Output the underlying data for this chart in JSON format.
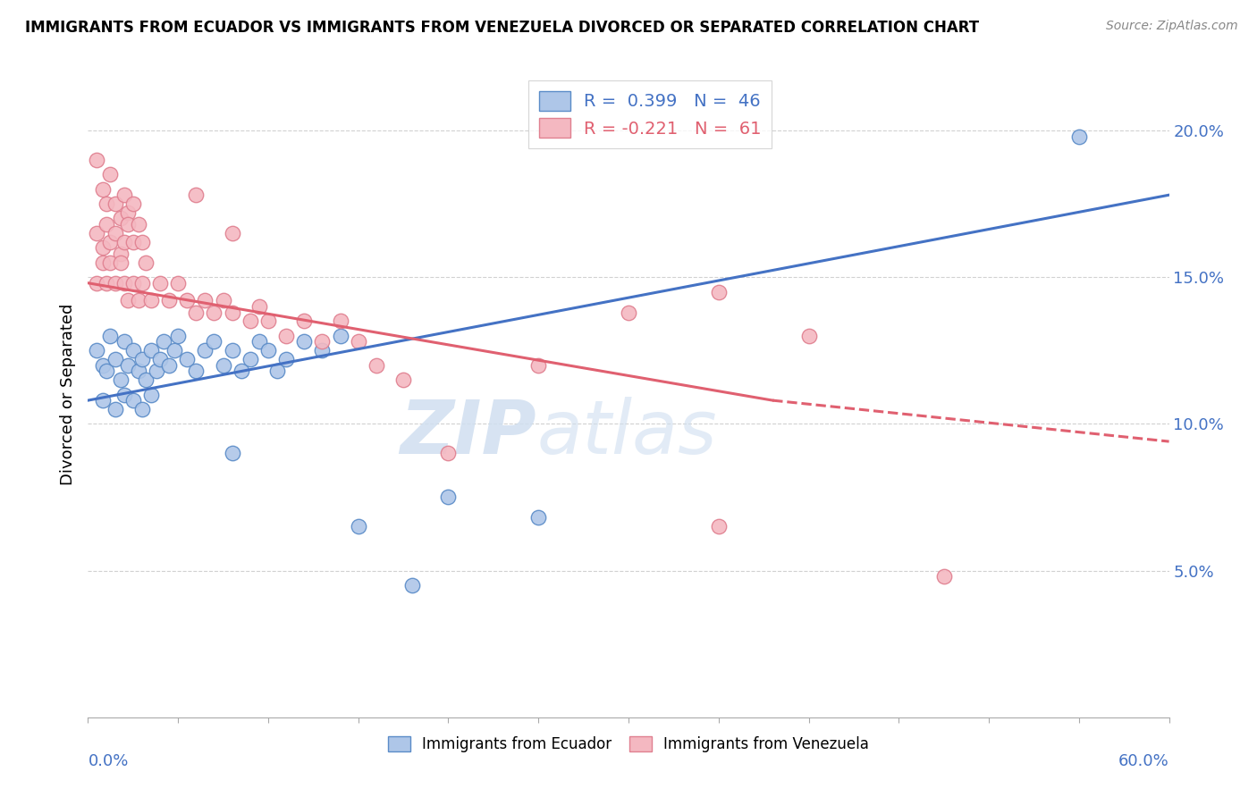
{
  "title": "IMMIGRANTS FROM ECUADOR VS IMMIGRANTS FROM VENEZUELA DIVORCED OR SEPARATED CORRELATION CHART",
  "source": "Source: ZipAtlas.com",
  "ylabel": "Divorced or Separated",
  "xlim": [
    0.0,
    0.6
  ],
  "ylim": [
    0.0,
    0.22
  ],
  "yticks": [
    0.05,
    0.1,
    0.15,
    0.2
  ],
  "ytick_labels": [
    "5.0%",
    "10.0%",
    "15.0%",
    "20.0%"
  ],
  "xtick_labels": [
    "0.0%",
    "",
    "",
    "",
    "",
    "",
    "60.0%"
  ],
  "legend_ecuador": "R =  0.399   N =  46",
  "legend_venezuela": "R = -0.221   N =  61",
  "ecuador_color": "#aec6e8",
  "venezuela_color": "#f4b8c1",
  "ecuador_edge_color": "#5b8cc8",
  "venezuela_edge_color": "#e08090",
  "ecuador_line_color": "#4472c4",
  "venezuela_line_color": "#e06070",
  "ecuador_regression": [
    0.0,
    0.6,
    0.108,
    0.178
  ],
  "venezuela_regression_solid": [
    0.0,
    0.38,
    0.148,
    0.108
  ],
  "venezuela_regression_dashed": [
    0.38,
    0.6,
    0.108,
    0.094
  ],
  "ecuador_points": [
    [
      0.005,
      0.125
    ],
    [
      0.008,
      0.12
    ],
    [
      0.01,
      0.118
    ],
    [
      0.012,
      0.13
    ],
    [
      0.015,
      0.122
    ],
    [
      0.018,
      0.115
    ],
    [
      0.02,
      0.128
    ],
    [
      0.022,
      0.12
    ],
    [
      0.025,
      0.125
    ],
    [
      0.028,
      0.118
    ],
    [
      0.03,
      0.122
    ],
    [
      0.032,
      0.115
    ],
    [
      0.035,
      0.125
    ],
    [
      0.038,
      0.118
    ],
    [
      0.04,
      0.122
    ],
    [
      0.042,
      0.128
    ],
    [
      0.045,
      0.12
    ],
    [
      0.048,
      0.125
    ],
    [
      0.05,
      0.13
    ],
    [
      0.055,
      0.122
    ],
    [
      0.06,
      0.118
    ],
    [
      0.065,
      0.125
    ],
    [
      0.07,
      0.128
    ],
    [
      0.075,
      0.12
    ],
    [
      0.08,
      0.125
    ],
    [
      0.085,
      0.118
    ],
    [
      0.09,
      0.122
    ],
    [
      0.095,
      0.128
    ],
    [
      0.1,
      0.125
    ],
    [
      0.105,
      0.118
    ],
    [
      0.11,
      0.122
    ],
    [
      0.12,
      0.128
    ],
    [
      0.13,
      0.125
    ],
    [
      0.14,
      0.13
    ],
    [
      0.008,
      0.108
    ],
    [
      0.015,
      0.105
    ],
    [
      0.02,
      0.11
    ],
    [
      0.025,
      0.108
    ],
    [
      0.03,
      0.105
    ],
    [
      0.035,
      0.11
    ],
    [
      0.08,
      0.09
    ],
    [
      0.15,
      0.065
    ],
    [
      0.18,
      0.045
    ],
    [
      0.55,
      0.198
    ],
    [
      0.2,
      0.075
    ],
    [
      0.25,
      0.068
    ]
  ],
  "venezuela_points": [
    [
      0.005,
      0.19
    ],
    [
      0.008,
      0.18
    ],
    [
      0.01,
      0.175
    ],
    [
      0.012,
      0.185
    ],
    [
      0.015,
      0.175
    ],
    [
      0.018,
      0.17
    ],
    [
      0.02,
      0.178
    ],
    [
      0.022,
      0.172
    ],
    [
      0.005,
      0.165
    ],
    [
      0.008,
      0.16
    ],
    [
      0.01,
      0.168
    ],
    [
      0.012,
      0.162
    ],
    [
      0.015,
      0.165
    ],
    [
      0.018,
      0.158
    ],
    [
      0.02,
      0.162
    ],
    [
      0.022,
      0.168
    ],
    [
      0.025,
      0.162
    ],
    [
      0.028,
      0.168
    ],
    [
      0.03,
      0.162
    ],
    [
      0.032,
      0.155
    ],
    [
      0.005,
      0.148
    ],
    [
      0.008,
      0.155
    ],
    [
      0.01,
      0.148
    ],
    [
      0.012,
      0.155
    ],
    [
      0.015,
      0.148
    ],
    [
      0.018,
      0.155
    ],
    [
      0.02,
      0.148
    ],
    [
      0.022,
      0.142
    ],
    [
      0.025,
      0.148
    ],
    [
      0.028,
      0.142
    ],
    [
      0.03,
      0.148
    ],
    [
      0.035,
      0.142
    ],
    [
      0.04,
      0.148
    ],
    [
      0.045,
      0.142
    ],
    [
      0.05,
      0.148
    ],
    [
      0.055,
      0.142
    ],
    [
      0.06,
      0.138
    ],
    [
      0.065,
      0.142
    ],
    [
      0.07,
      0.138
    ],
    [
      0.075,
      0.142
    ],
    [
      0.08,
      0.138
    ],
    [
      0.09,
      0.135
    ],
    [
      0.095,
      0.14
    ],
    [
      0.1,
      0.135
    ],
    [
      0.11,
      0.13
    ],
    [
      0.12,
      0.135
    ],
    [
      0.13,
      0.128
    ],
    [
      0.14,
      0.135
    ],
    [
      0.15,
      0.128
    ],
    [
      0.16,
      0.12
    ],
    [
      0.175,
      0.115
    ],
    [
      0.2,
      0.09
    ],
    [
      0.25,
      0.12
    ],
    [
      0.3,
      0.138
    ],
    [
      0.35,
      0.145
    ],
    [
      0.4,
      0.13
    ],
    [
      0.35,
      0.065
    ],
    [
      0.025,
      0.175
    ],
    [
      0.06,
      0.178
    ],
    [
      0.08,
      0.165
    ],
    [
      0.475,
      0.048
    ]
  ]
}
